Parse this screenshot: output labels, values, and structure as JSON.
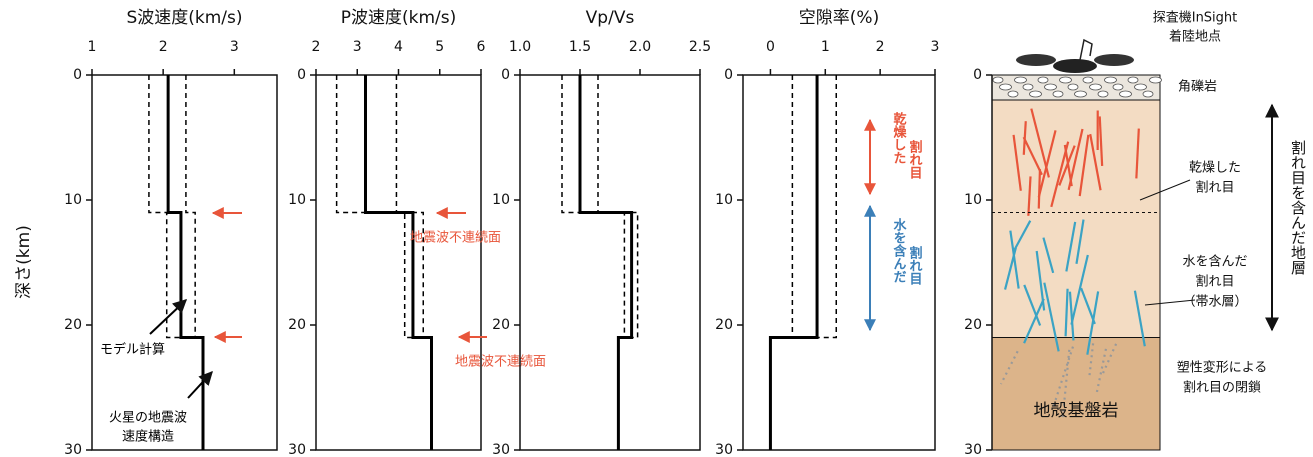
{
  "y_label": "深さ(km)",
  "chart_data": [
    {
      "type": "line",
      "title": "S波速度(km/s)",
      "xlim": [
        1,
        3.6
      ],
      "xticks": [
        1,
        2,
        3
      ],
      "ylim": [
        30,
        0
      ],
      "yticks": [
        0,
        10,
        20,
        30
      ],
      "series": [
        {
          "color": "#000000",
          "style": "solid",
          "depth": [
            0,
            11,
            11,
            21,
            21,
            30
          ],
          "values": [
            2.07,
            2.07,
            2.25,
            2.25,
            2.56,
            2.56
          ]
        },
        {
          "color": "#000000",
          "style": "dashed",
          "depth": [
            0,
            11,
            11,
            21,
            21
          ],
          "values": [
            1.8,
            1.8,
            2.05,
            2.05,
            2.56
          ]
        },
        {
          "color": "#000000",
          "style": "dashed",
          "depth": [
            0,
            11,
            11,
            21,
            21
          ],
          "values": [
            2.32,
            2.32,
            2.45,
            2.45,
            2.56
          ]
        }
      ],
      "annotations": [
        {
          "lines": [
            "モデル計算"
          ],
          "color": "#000000"
        },
        {
          "lines": [
            "火星の地震波",
            "速度構造"
          ],
          "color": "#000000"
        }
      ]
    },
    {
      "type": "line",
      "title": "P波速度(km/s)",
      "xlim": [
        2,
        6
      ],
      "xticks": [
        2,
        3,
        4,
        5,
        6
      ],
      "ylim": [
        30,
        0
      ],
      "yticks": [
        0,
        10,
        20,
        30
      ],
      "series": [
        {
          "color": "#000000",
          "style": "solid",
          "depth": [
            0,
            11,
            11,
            21,
            21,
            30
          ],
          "values": [
            3.2,
            3.2,
            4.35,
            4.35,
            4.8,
            4.8
          ]
        },
        {
          "color": "#000000",
          "style": "dashed",
          "depth": [
            0,
            11,
            11,
            21,
            21
          ],
          "values": [
            2.5,
            2.5,
            4.15,
            4.15,
            4.8
          ]
        },
        {
          "color": "#000000",
          "style": "dashed",
          "depth": [
            0,
            11,
            11,
            21,
            21
          ],
          "values": [
            3.95,
            3.95,
            4.6,
            4.6,
            4.8
          ]
        }
      ],
      "annotations": [
        {
          "lines": [
            "地震波不連続面"
          ],
          "color": "#e8553a"
        },
        {
          "lines": [
            "地震波不連続面"
          ],
          "color": "#e8553a"
        }
      ]
    },
    {
      "type": "line",
      "title": "Vp/Vs",
      "xlim": [
        1.0,
        2.5
      ],
      "xticks": [
        {
          "value": 1.0,
          "label": "1.0"
        },
        1.5,
        {
          "value": 2.0,
          "label": "2.0"
        },
        2.5
      ],
      "ylim": [
        30,
        0
      ],
      "yticks": [
        0,
        10,
        20,
        30
      ],
      "series": [
        {
          "color": "#000000",
          "style": "solid",
          "depth": [
            0,
            11,
            11,
            21,
            21,
            30
          ],
          "values": [
            1.5,
            1.5,
            1.93,
            1.93,
            1.82,
            1.82
          ]
        },
        {
          "color": "#000000",
          "style": "dashed",
          "depth": [
            0,
            11,
            11,
            21,
            21
          ],
          "values": [
            1.35,
            1.35,
            1.87,
            1.87,
            1.82
          ]
        },
        {
          "color": "#000000",
          "style": "dashed",
          "depth": [
            0,
            11,
            11,
            21,
            21
          ],
          "values": [
            1.65,
            1.65,
            1.98,
            1.98,
            1.82
          ]
        }
      ],
      "annotations": []
    },
    {
      "type": "line",
      "title": "空隙率(%)",
      "xlim": [
        -0.5,
        3
      ],
      "xticks": [
        0,
        1,
        2,
        3
      ],
      "ylim": [
        30,
        0
      ],
      "yticks": [
        0,
        10,
        20,
        30
      ],
      "series": [
        {
          "color": "#000000",
          "style": "solid",
          "depth": [
            0,
            21,
            21,
            30
          ],
          "values": [
            0.85,
            0.85,
            0,
            0
          ]
        },
        {
          "color": "#000000",
          "style": "dashed",
          "depth": [
            0,
            21,
            21
          ],
          "values": [
            0.4,
            0.4,
            0
          ]
        },
        {
          "color": "#000000",
          "style": "dashed",
          "depth": [
            0,
            21,
            21
          ],
          "values": [
            1.2,
            1.2,
            0.85
          ]
        }
      ],
      "annotations": [
        {
          "lines": [
            "乾燥した",
            "割れ目"
          ],
          "color": "#e8553a"
        },
        {
          "lines": [
            "水を含んだ",
            "割れ目"
          ],
          "color": "#3b7fb8"
        }
      ]
    }
  ],
  "diagram": {
    "top_label": [
      "探査機InSight",
      "着陸地点"
    ],
    "ylim": [
      30,
      0
    ],
    "yticks": [
      0,
      10,
      20,
      30
    ],
    "layers": [
      {
        "label": "角礫岩",
        "top": 0,
        "bottom": 2,
        "color": "#ebe6de"
      },
      {
        "top": 2,
        "bottom": 21,
        "color": "#f3dcc3"
      },
      {
        "label": "地殻基盤岩",
        "top": 21,
        "bottom": 30,
        "color": "#dcb48a"
      }
    ],
    "boundary": 11,
    "notes": [
      {
        "lines": [
          "乾燥した",
          "割れ目"
        ]
      },
      {
        "lines": [
          "水を含んだ",
          "割れ目",
          "（帯水層）"
        ]
      },
      {
        "lines": [
          "塑性変形による",
          "割れ目の閉鎖"
        ]
      }
    ],
    "side_label": "割れ目を含んだ地層"
  }
}
